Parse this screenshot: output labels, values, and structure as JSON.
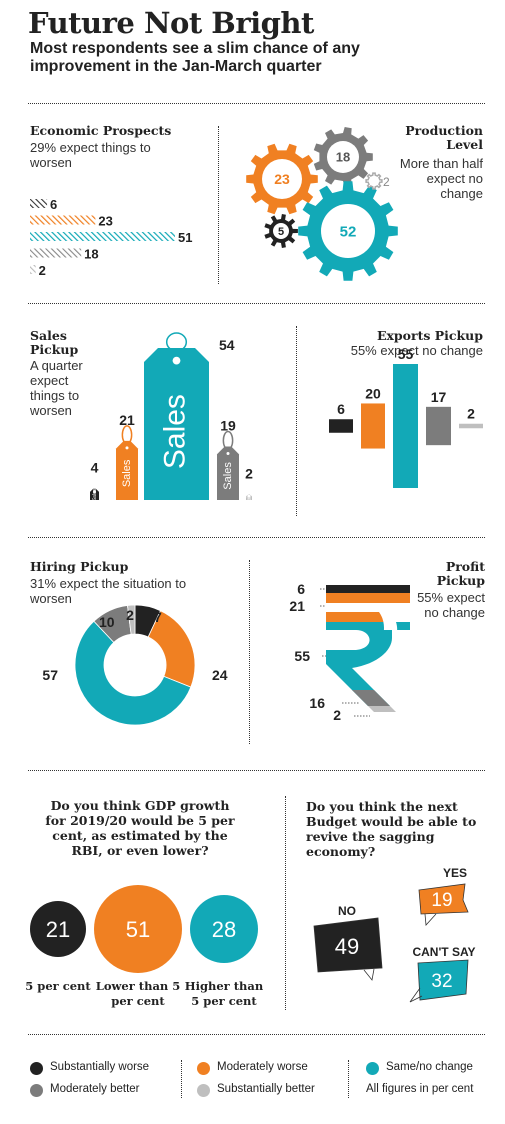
{
  "title": "Future Not Bright",
  "subtitle": "Most respondents see a slim chance of any improvement in the Jan-March quarter",
  "colors": {
    "substantially_worse": "#222222",
    "moderately_worse": "#F08022",
    "same": "#12A9B7",
    "moderately_better": "#7C7C7C",
    "substantially_better": "#BFBFBF"
  },
  "chart_data": [
    {
      "type": "bar",
      "title": "Economic Prospects",
      "subtitle": "29% expect things to worsen",
      "categories": [
        "Substantially worse",
        "Moderately worse",
        "Same/no change",
        "Moderately better",
        "Substantially better"
      ],
      "values": [
        6,
        23,
        51,
        18,
        2
      ]
    },
    {
      "type": "bubble",
      "title": "Production Level",
      "subtitle": "More than half expect no change",
      "categories": [
        "Substantially worse",
        "Moderately worse",
        "Same/no change",
        "Moderately better",
        "Substantially better"
      ],
      "values": [
        5,
        23,
        52,
        18,
        2
      ]
    },
    {
      "type": "bar",
      "title": "Sales Pickup",
      "subtitle": "A quarter expect things to worsen",
      "tag_label": "Sales",
      "tag_label_small": "Sales",
      "categories": [
        "Substantially worse",
        "Moderately worse",
        "Same/no change",
        "Moderately better",
        "Substantially better"
      ],
      "values": [
        4,
        21,
        54,
        19,
        2
      ]
    },
    {
      "type": "bar",
      "title": "Exports Pickup",
      "subtitle": "55% expect no change",
      "categories": [
        "Substantially worse",
        "Moderately worse",
        "Same/no change",
        "Moderately better",
        "Substantially better"
      ],
      "values": [
        6,
        20,
        55,
        17,
        2
      ]
    },
    {
      "type": "pie",
      "title": "Hiring Pickup",
      "subtitle": "31% expect the situation to worsen",
      "categories": [
        "Substantially worse",
        "Moderately worse",
        "Same/no change",
        "Moderately better",
        "Substantially better"
      ],
      "values": [
        7,
        24,
        57,
        10,
        2
      ]
    },
    {
      "type": "bar",
      "title": "Profit Pickup",
      "subtitle": "55% expect no change",
      "categories": [
        "Substantially worse",
        "Moderately worse",
        "Same/no change",
        "Moderately better",
        "Substantially better"
      ],
      "values": [
        6,
        21,
        55,
        16,
        2
      ]
    },
    {
      "type": "bubble",
      "title": "Do you think GDP growth for 2019/20 would be 5 per cent, as estimated by the RBI, or even lower?",
      "categories": [
        "5 per cent",
        "Lower than 5 per cent",
        "Higher than 5 per cent"
      ],
      "values": [
        21,
        51,
        28
      ]
    },
    {
      "type": "bubble",
      "title": "Do you think the next Budget would be able to revive the sagging economy?",
      "categories": [
        "YES",
        "NO",
        "CAN'T SAY"
      ],
      "values": [
        19,
        49,
        32
      ]
    }
  ],
  "legend": {
    "items": [
      "Substantially worse",
      "Moderately worse",
      "Same/no change",
      "Moderately better",
      "Substantially better"
    ],
    "note": "All figures in per cent"
  }
}
